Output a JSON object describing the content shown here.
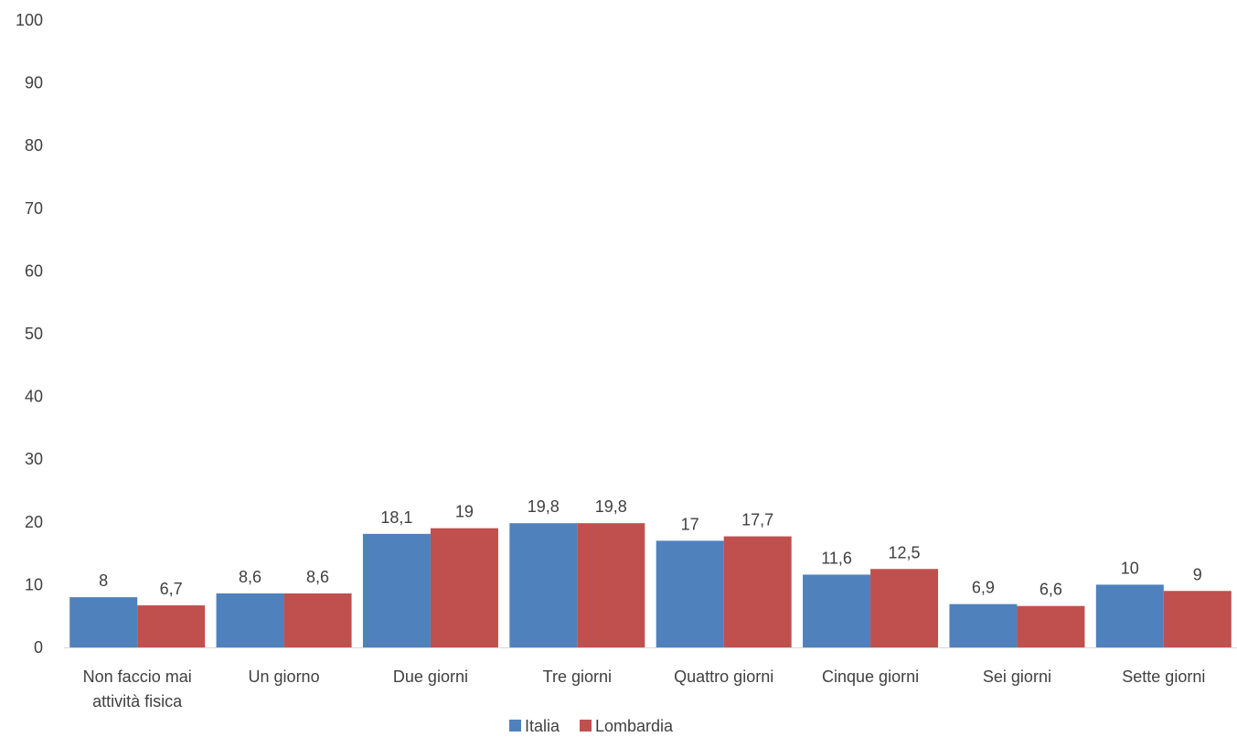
{
  "chart_data": {
    "type": "bar",
    "title": "",
    "xlabel": "",
    "ylabel": "",
    "ylim": [
      0,
      100
    ],
    "yticks": [
      0,
      10,
      20,
      30,
      40,
      50,
      60,
      70,
      80,
      90,
      100
    ],
    "grid": false,
    "legend_position": "bottom",
    "categories": [
      [
        "Non faccio mai",
        "attività fisica"
      ],
      [
        "Un giorno"
      ],
      [
        "Due giorni"
      ],
      [
        "Tre giorni"
      ],
      [
        "Quattro giorni"
      ],
      [
        "Cinque giorni"
      ],
      [
        "Sei giorni"
      ],
      [
        "Sette giorni"
      ]
    ],
    "series": [
      {
        "name": "Italia",
        "color": "#4F81BD",
        "values": [
          8,
          8.6,
          18.1,
          19.8,
          17,
          11.6,
          6.9,
          10
        ],
        "labels": [
          "8",
          "8,6",
          "18,1",
          "19,8",
          "17",
          "11,6",
          "6,9",
          "10"
        ]
      },
      {
        "name": "Lombardia",
        "color": "#C0504D",
        "values": [
          6.7,
          8.6,
          19,
          19.8,
          17.7,
          12.5,
          6.6,
          9
        ],
        "labels": [
          "6,7",
          "8,6",
          "19",
          "19,8",
          "17,7",
          "12,5",
          "6,6",
          "9"
        ]
      }
    ]
  }
}
